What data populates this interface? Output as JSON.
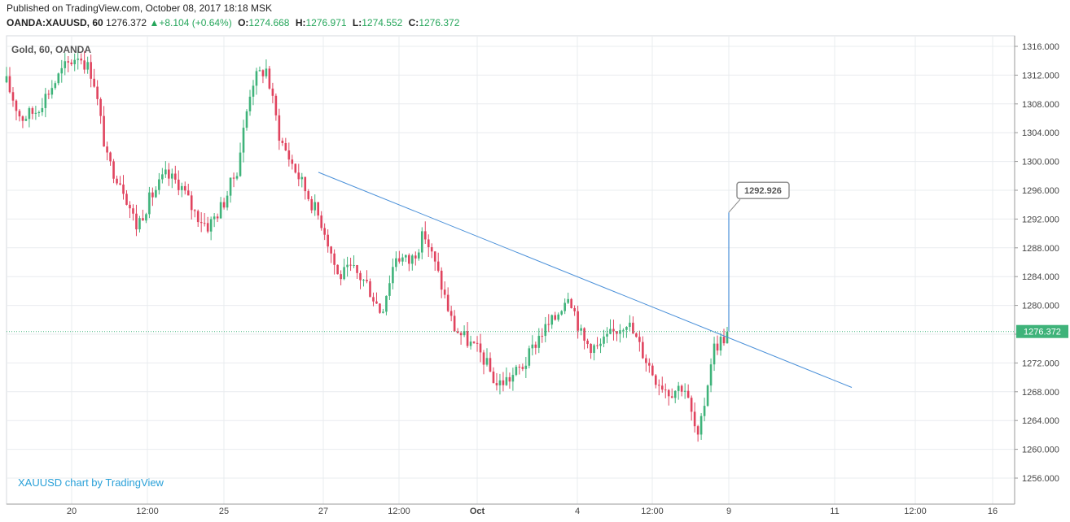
{
  "header": {
    "published": "Published on TradingView.com, October 08, 2017 18:18 MSK",
    "symbol": "OANDA:XAUUSD, 60",
    "last": "1276.372",
    "change_arrow": "▲",
    "change": "+8.104 (+0.64%)",
    "open_label": "O:",
    "open": "1274.668",
    "high_label": "H:",
    "high": "1276.971",
    "low_label": "L:",
    "low": "1274.552",
    "close_label": "C:",
    "close": "1276.372"
  },
  "pane_label": "Gold, 60, OANDA",
  "watermark": "XAUUSD chart by TradingView",
  "colors": {
    "up": "#3fb37a",
    "down": "#e0435e",
    "trendline": "#4a90d9",
    "grid": "#e9ecef",
    "price_tag": "#3fb37a",
    "watermark": "#29a0d8"
  },
  "chart_data": {
    "type": "candlestick",
    "instrument": "Gold, 60, OANDA",
    "x_ticks": [
      "20",
      "12:00",
      "25",
      "27",
      "12:00",
      "Oct",
      "4",
      "12:00",
      "9",
      "11",
      "12:00",
      "16"
    ],
    "y_ticks": [
      "1316.000",
      "1312.000",
      "1308.000",
      "1304.000",
      "1300.000",
      "1296.000",
      "1292.000",
      "1288.000",
      "1284.000",
      "1280.000",
      "1276.000",
      "1272.000",
      "1268.000",
      "1264.000",
      "1260.000",
      "1256.000"
    ],
    "ylim": [
      1253.5,
      1317.5
    ],
    "last_price": 1276.372,
    "last_price_label": "1276.372",
    "price_path": [
      1311,
      1306,
      1307,
      1310,
      1313,
      1315,
      1312,
      1300,
      1297,
      1291,
      1295,
      1298,
      1297,
      1293,
      1291,
      1294,
      1299,
      1311,
      1313,
      1303,
      1299,
      1295,
      1291,
      1284,
      1285,
      1283,
      1279,
      1287,
      1286,
      1290,
      1284,
      1277,
      1275,
      1273,
      1269,
      1270,
      1272,
      1276,
      1278,
      1282,
      1275,
      1274,
      1276,
      1278,
      1274,
      1270,
      1268,
      1269,
      1261,
      1274,
      1276
    ],
    "trendline": {
      "from": [
        391,
        1298.5
      ],
      "to": [
        1046,
        1268.6
      ]
    },
    "callout": {
      "value": 1292.926,
      "label": "1292.926",
      "x": 895,
      "from_price": 1276.372
    }
  }
}
